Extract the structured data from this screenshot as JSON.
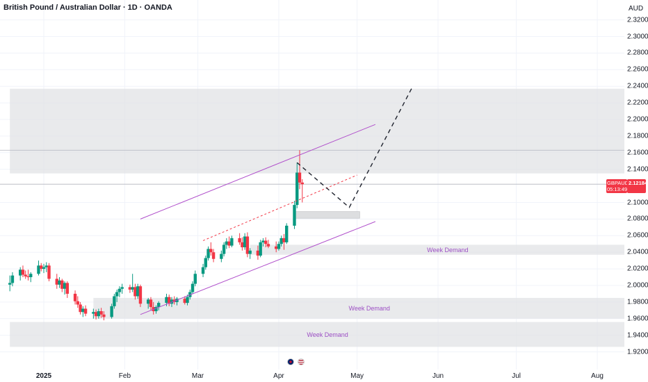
{
  "header": {
    "title": "British Pound / Australian Dollar · 1D · OANDA",
    "currency": "AUD"
  },
  "price_tag": {
    "symbol": "GBPAUD",
    "price": "2.12184",
    "countdown": "05:13:49"
  },
  "colors": {
    "up": "#089981",
    "down": "#f23645",
    "zone": "#e0e1e4",
    "channel": "#b04fcb",
    "dashed_path": "#1e222d",
    "label": "#9c4fc4"
  },
  "chart_data": {
    "type": "candlestick",
    "title": "British Pound / Australian Dollar · 1D · OANDA",
    "ylabel": "AUD",
    "ylim": [
      1.91,
      2.33
    ],
    "y_ticks": [
      "2.32000",
      "2.30000",
      "2.28000",
      "2.26000",
      "2.24000",
      "2.22000",
      "2.20000",
      "2.18000",
      "2.16000",
      "2.14000",
      "2.10000",
      "2.08000",
      "2.06000",
      "2.04000",
      "2.02000",
      "2.00000",
      "1.98000",
      "1.96000",
      "1.94000",
      "1.92000"
    ],
    "x_ticks": [
      "2025",
      "Feb",
      "Mar",
      "Apr",
      "May",
      "Jun",
      "Jul",
      "Aug"
    ],
    "last_price": 2.12184,
    "series": [
      {
        "d": "2024-12-19",
        "o": 2.001,
        "h": 2.012,
        "l": 1.993,
        "c": 2.003
      },
      {
        "d": "2024-12-20",
        "o": 2.003,
        "h": 2.016,
        "l": 1.999,
        "c": 2.012
      },
      {
        "d": "2024-12-23",
        "o": 2.012,
        "h": 2.022,
        "l": 2.006,
        "c": 2.019
      },
      {
        "d": "2024-12-24",
        "o": 2.019,
        "h": 2.024,
        "l": 2.01,
        "c": 2.013
      },
      {
        "d": "2024-12-25",
        "o": 2.013,
        "h": 2.018,
        "l": 2.008,
        "c": 2.011
      },
      {
        "d": "2024-12-26",
        "o": 2.011,
        "h": 2.019,
        "l": 2.006,
        "c": 2.01
      },
      {
        "d": "2024-12-27",
        "o": 2.01,
        "h": 2.016,
        "l": 2.004,
        "c": 2.014
      },
      {
        "d": "2024-12-30",
        "o": 2.014,
        "h": 2.03,
        "l": 2.012,
        "c": 2.024
      },
      {
        "d": "2024-12-31",
        "o": 2.024,
        "h": 2.027,
        "l": 2.017,
        "c": 2.02
      },
      {
        "d": "2025-01-01",
        "o": 2.02,
        "h": 2.026,
        "l": 2.015,
        "c": 2.022
      },
      {
        "d": "2025-01-02",
        "o": 2.022,
        "h": 2.028,
        "l": 2.016,
        "c": 2.024
      },
      {
        "d": "2025-01-03",
        "o": 2.024,
        "h": 2.027,
        "l": 2.005,
        "c": 2.008
      },
      {
        "d": "2025-01-06",
        "o": 2.008,
        "h": 2.014,
        "l": 1.996,
        "c": 2.001
      },
      {
        "d": "2025-01-07",
        "o": 2.001,
        "h": 2.01,
        "l": 1.997,
        "c": 2.006
      },
      {
        "d": "2025-01-08",
        "o": 2.006,
        "h": 2.008,
        "l": 1.992,
        "c": 1.996
      },
      {
        "d": "2025-01-09",
        "o": 1.996,
        "h": 2.005,
        "l": 1.989,
        "c": 2.003
      },
      {
        "d": "2025-01-10",
        "o": 2.003,
        "h": 2.005,
        "l": 1.985,
        "c": 1.99
      },
      {
        "d": "2025-01-13",
        "o": 1.99,
        "h": 1.994,
        "l": 1.977,
        "c": 1.981
      },
      {
        "d": "2025-01-14",
        "o": 1.981,
        "h": 1.987,
        "l": 1.973,
        "c": 1.977
      },
      {
        "d": "2025-01-15",
        "o": 1.977,
        "h": 1.98,
        "l": 1.965,
        "c": 1.968
      },
      {
        "d": "2025-01-16",
        "o": 1.968,
        "h": 1.975,
        "l": 1.962,
        "c": 1.972
      },
      {
        "d": "2025-01-17",
        "o": 1.972,
        "h": 1.976,
        "l": 1.963,
        "c": 1.966
      },
      {
        "d": "2025-01-20",
        "o": 1.966,
        "h": 1.972,
        "l": 1.96,
        "c": 1.968
      },
      {
        "d": "2025-01-21",
        "o": 1.968,
        "h": 1.971,
        "l": 1.959,
        "c": 1.963
      },
      {
        "d": "2025-01-22",
        "o": 1.963,
        "h": 1.972,
        "l": 1.96,
        "c": 1.969
      },
      {
        "d": "2025-01-23",
        "o": 1.969,
        "h": 1.973,
        "l": 1.961,
        "c": 1.965
      },
      {
        "d": "2025-01-24",
        "o": 1.965,
        "h": 1.969,
        "l": 1.958,
        "c": 1.962
      },
      {
        "d": "2025-01-27",
        "o": 1.962,
        "h": 1.978,
        "l": 1.96,
        "c": 1.975
      },
      {
        "d": "2025-01-28",
        "o": 1.975,
        "h": 1.99,
        "l": 1.972,
        "c": 1.987
      },
      {
        "d": "2025-01-29",
        "o": 1.987,
        "h": 1.995,
        "l": 1.98,
        "c": 1.992
      },
      {
        "d": "2025-01-30",
        "o": 1.992,
        "h": 1.999,
        "l": 1.986,
        "c": 1.996
      },
      {
        "d": "2025-01-31",
        "o": 1.996,
        "h": 2.002,
        "l": 1.99,
        "c": 1.998
      },
      {
        "d": "2025-02-03",
        "o": 1.998,
        "h": 2.001,
        "l": 1.991,
        "c": 1.995
      },
      {
        "d": "2025-02-04",
        "o": 1.995,
        "h": 2.014,
        "l": 1.992,
        "c": 1.998
      },
      {
        "d": "2025-02-05",
        "o": 1.998,
        "h": 2.002,
        "l": 1.983,
        "c": 1.987
      },
      {
        "d": "2025-02-06",
        "o": 1.987,
        "h": 2.002,
        "l": 1.984,
        "c": 1.999
      },
      {
        "d": "2025-02-07",
        "o": 1.999,
        "h": 2.001,
        "l": 1.974,
        "c": 1.978
      },
      {
        "d": "2025-02-10",
        "o": 1.978,
        "h": 1.985,
        "l": 1.972,
        "c": 1.983
      },
      {
        "d": "2025-02-11",
        "o": 1.983,
        "h": 1.986,
        "l": 1.97,
        "c": 1.974
      },
      {
        "d": "2025-02-12",
        "o": 1.974,
        "h": 1.98,
        "l": 1.965,
        "c": 1.969
      },
      {
        "d": "2025-02-13",
        "o": 1.969,
        "h": 1.976,
        "l": 1.966,
        "c": 1.974
      },
      {
        "d": "2025-02-14",
        "o": 1.974,
        "h": 1.981,
        "l": 1.97,
        "c": 1.979
      },
      {
        "d": "2025-02-17",
        "o": 1.979,
        "h": 1.99,
        "l": 1.975,
        "c": 1.986
      },
      {
        "d": "2025-02-18",
        "o": 1.986,
        "h": 1.989,
        "l": 1.975,
        "c": 1.978
      },
      {
        "d": "2025-02-19",
        "o": 1.978,
        "h": 1.986,
        "l": 1.974,
        "c": 1.983
      },
      {
        "d": "2025-02-20",
        "o": 1.983,
        "h": 1.987,
        "l": 1.977,
        "c": 1.98
      },
      {
        "d": "2025-02-21",
        "o": 1.98,
        "h": 1.986,
        "l": 1.976,
        "c": 1.984
      },
      {
        "d": "2025-02-24",
        "o": 1.984,
        "h": 1.987,
        "l": 1.977,
        "c": 1.979
      },
      {
        "d": "2025-02-25",
        "o": 1.979,
        "h": 1.989,
        "l": 1.976,
        "c": 1.986
      },
      {
        "d": "2025-02-26",
        "o": 1.986,
        "h": 1.995,
        "l": 1.983,
        "c": 1.992
      },
      {
        "d": "2025-02-27",
        "o": 1.992,
        "h": 2.005,
        "l": 1.99,
        "c": 2.002
      },
      {
        "d": "2025-02-28",
        "o": 2.002,
        "h": 2.018,
        "l": 1.999,
        "c": 2.014
      },
      {
        "d": "2025-03-03",
        "o": 2.014,
        "h": 2.026,
        "l": 2.01,
        "c": 2.022
      },
      {
        "d": "2025-03-04",
        "o": 2.022,
        "h": 2.036,
        "l": 2.019,
        "c": 2.033
      },
      {
        "d": "2025-03-05",
        "o": 2.033,
        "h": 2.047,
        "l": 2.03,
        "c": 2.044
      },
      {
        "d": "2025-03-06",
        "o": 2.044,
        "h": 2.052,
        "l": 2.036,
        "c": 2.04
      },
      {
        "d": "2025-03-07",
        "o": 2.04,
        "h": 2.044,
        "l": 2.028,
        "c": 2.032
      },
      {
        "d": "2025-03-10",
        "o": 2.032,
        "h": 2.042,
        "l": 2.028,
        "c": 2.038
      },
      {
        "d": "2025-03-11",
        "o": 2.038,
        "h": 2.052,
        "l": 2.035,
        "c": 2.049
      },
      {
        "d": "2025-03-12",
        "o": 2.049,
        "h": 2.057,
        "l": 2.044,
        "c": 2.053
      },
      {
        "d": "2025-03-13",
        "o": 2.053,
        "h": 2.059,
        "l": 2.045,
        "c": 2.048
      },
      {
        "d": "2025-03-14",
        "o": 2.048,
        "h": 2.06,
        "l": 2.046,
        "c": 2.057
      },
      {
        "d": "2025-03-17",
        "o": 2.057,
        "h": 2.063,
        "l": 2.049,
        "c": 2.052
      },
      {
        "d": "2025-03-18",
        "o": 2.052,
        "h": 2.058,
        "l": 2.042,
        "c": 2.046
      },
      {
        "d": "2025-03-19",
        "o": 2.046,
        "h": 2.063,
        "l": 2.043,
        "c": 2.059
      },
      {
        "d": "2025-03-20",
        "o": 2.059,
        "h": 2.064,
        "l": 2.034,
        "c": 2.038
      },
      {
        "d": "2025-03-21",
        "o": 2.038,
        "h": 2.045,
        "l": 2.032,
        "c": 2.042
      },
      {
        "d": "2025-03-24",
        "o": 2.042,
        "h": 2.048,
        "l": 2.031,
        "c": 2.036
      },
      {
        "d": "2025-03-25",
        "o": 2.036,
        "h": 2.055,
        "l": 2.034,
        "c": 2.052
      },
      {
        "d": "2025-03-26",
        "o": 2.052,
        "h": 2.057,
        "l": 2.047,
        "c": 2.054
      },
      {
        "d": "2025-03-27",
        "o": 2.054,
        "h": 2.058,
        "l": 2.046,
        "c": 2.05
      },
      {
        "d": "2025-03-28",
        "o": 2.05,
        "h": 2.055,
        "l": 2.045,
        "c": 2.047
      },
      {
        "d": "2025-03-31",
        "o": 2.047,
        "h": 2.053,
        "l": 2.04,
        "c": 2.044
      },
      {
        "d": "2025-04-01",
        "o": 2.044,
        "h": 2.053,
        "l": 2.042,
        "c": 2.05
      },
      {
        "d": "2025-04-02",
        "o": 2.05,
        "h": 2.06,
        "l": 2.047,
        "c": 2.057
      },
      {
        "d": "2025-04-03",
        "o": 2.057,
        "h": 2.062,
        "l": 2.043,
        "c": 2.052
      },
      {
        "d": "2025-04-04",
        "o": 2.052,
        "h": 2.075,
        "l": 2.05,
        "c": 2.072
      },
      {
        "d": "2025-04-07",
        "o": 2.072,
        "h": 2.102,
        "l": 2.068,
        "c": 2.097
      },
      {
        "d": "2025-04-08",
        "o": 2.097,
        "h": 2.148,
        "l": 2.093,
        "c": 2.136
      },
      {
        "d": "2025-04-09",
        "o": 2.136,
        "h": 2.163,
        "l": 2.116,
        "c": 2.124
      },
      {
        "d": "2025-04-10",
        "o": 2.124,
        "h": 2.128,
        "l": 2.1,
        "c": 2.122
      }
    ],
    "zones": [
      {
        "top": 2.237,
        "bottom": 2.135,
        "start": "2024-12-19",
        "label": ""
      },
      {
        "top": 2.089,
        "bottom": 2.081,
        "start": "2025-04-07",
        "end": "2025-05-02",
        "label": ""
      },
      {
        "top": 2.049,
        "bottom": 2.037,
        "start": "2025-03-21",
        "label": "Week Demand"
      },
      {
        "top": 1.985,
        "bottom": 1.96,
        "start": "2025-01-20",
        "label": "Week Demand"
      },
      {
        "top": 1.956,
        "bottom": 1.926,
        "start": "2024-12-19",
        "label": "Week Demand"
      }
    ],
    "reference_lines": [
      {
        "y": 2.163,
        "style": "solid-gray"
      },
      {
        "y": 2.122,
        "style": "solid-gray"
      }
    ],
    "channel_lines": [
      {
        "from": {
          "d": "2025-02-07",
          "y": 2.08
        },
        "to": {
          "d": "2025-05-08",
          "y": 2.194
        }
      },
      {
        "from": {
          "d": "2025-02-07",
          "y": 1.965
        },
        "to": {
          "d": "2025-05-08",
          "y": 2.077
        }
      }
    ],
    "red_dashed_line": {
      "from": {
        "d": "2025-03-03",
        "y": 2.054
      },
      "to": {
        "d": "2025-05-01",
        "y": 2.133
      }
    },
    "projection_path": [
      {
        "d": "2025-04-08",
        "y": 2.148
      },
      {
        "d": "2025-04-28",
        "y": 2.094
      },
      {
        "d": "2025-05-22",
        "y": 2.238
      }
    ]
  }
}
